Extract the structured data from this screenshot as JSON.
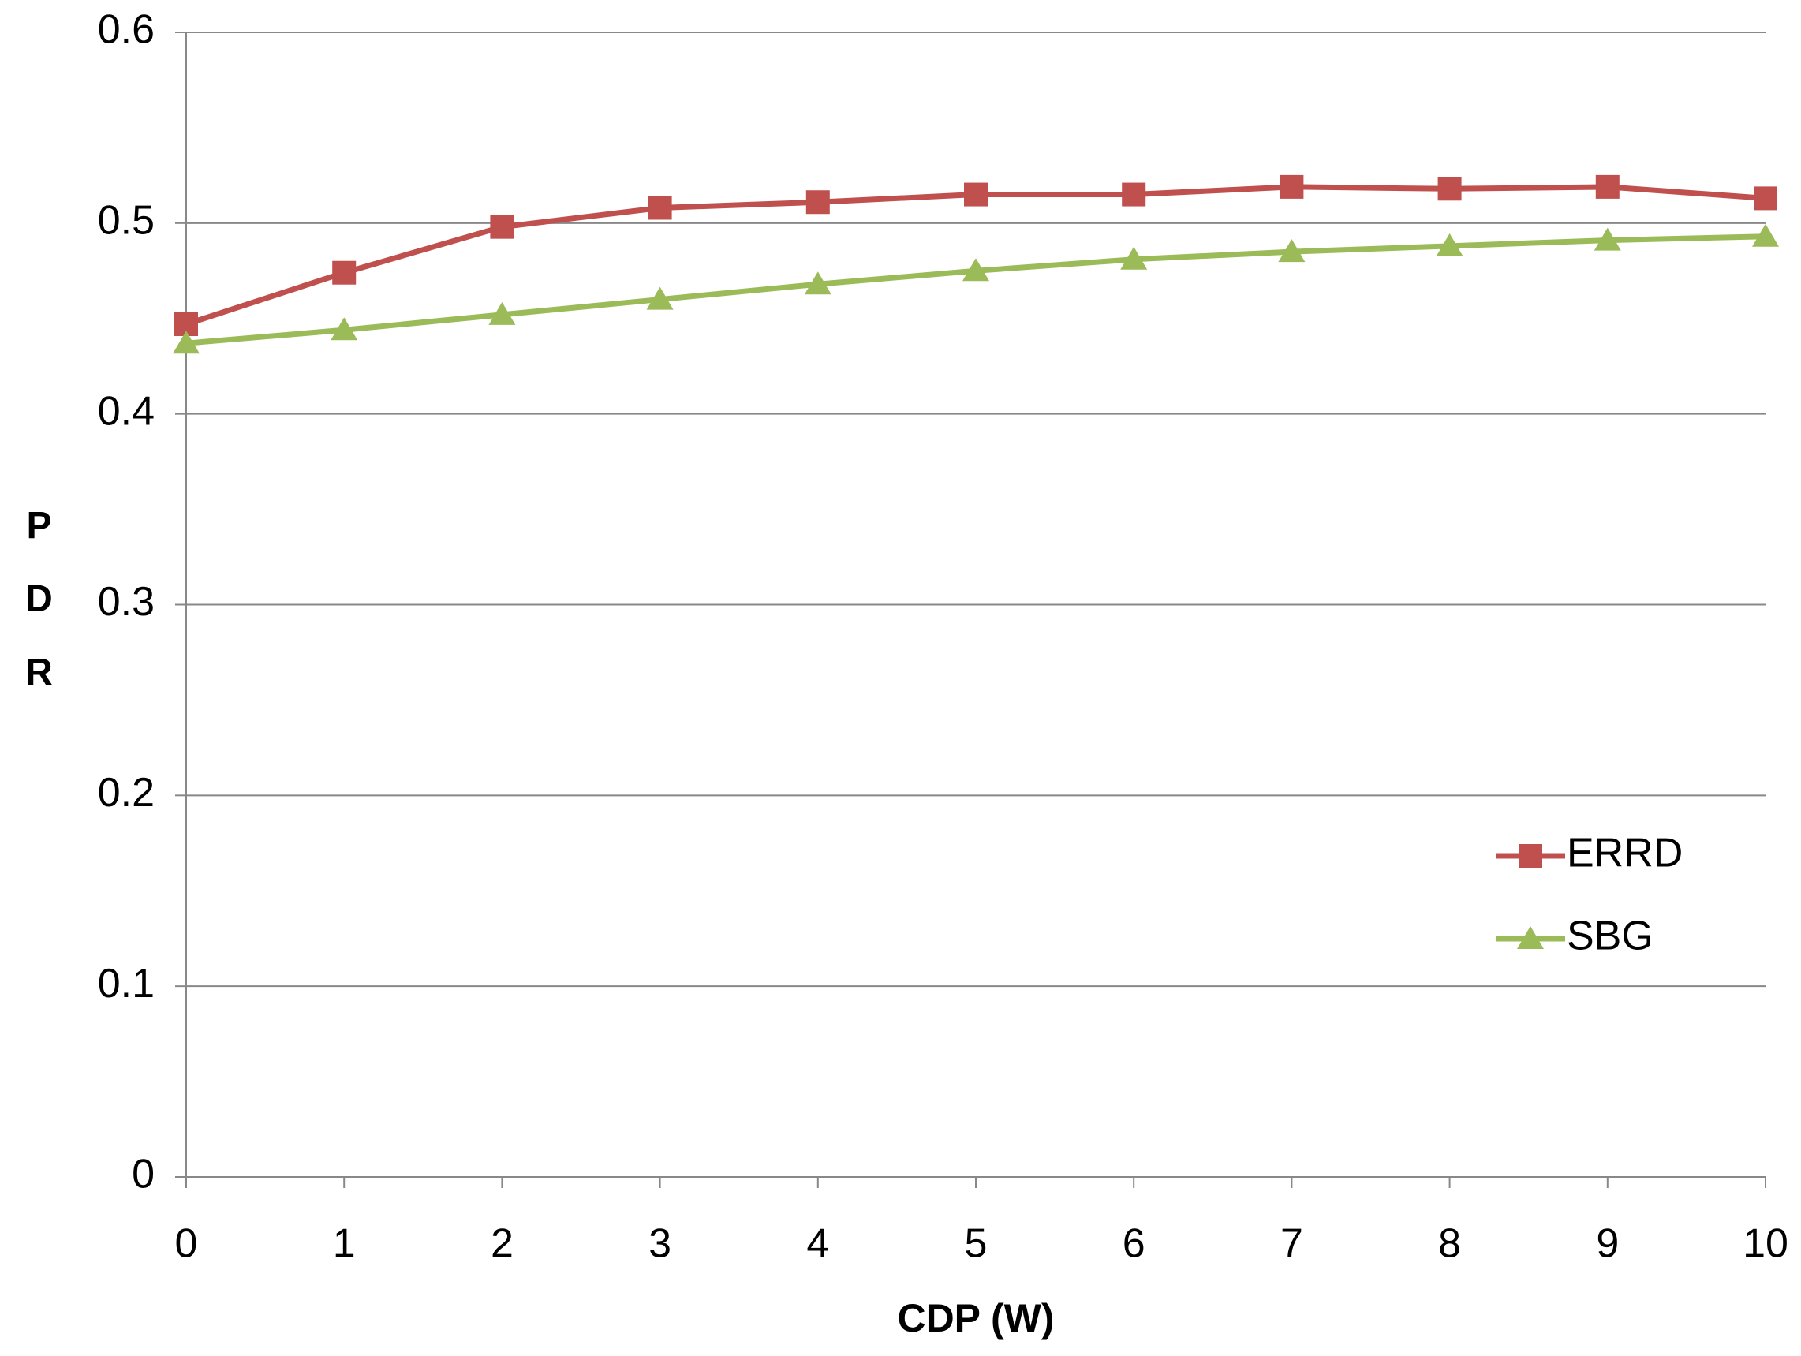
{
  "chart_data": {
    "type": "line",
    "x_label": "CDP (W)",
    "y_label": "PDR",
    "x": [
      0,
      1,
      2,
      3,
      4,
      5,
      6,
      7,
      8,
      9,
      10
    ],
    "series": [
      {
        "name": "ERRD",
        "color": "#c0504d",
        "marker": "square",
        "values": [
          0.447,
          0.474,
          0.498,
          0.508,
          0.511,
          0.515,
          0.515,
          0.519,
          0.518,
          0.519,
          0.513
        ]
      },
      {
        "name": "SBG",
        "color": "#9bbb59",
        "marker": "triangle",
        "values": [
          0.437,
          0.444,
          0.452,
          0.46,
          0.468,
          0.475,
          0.481,
          0.485,
          0.488,
          0.491,
          0.493
        ]
      }
    ],
    "xlim": [
      0,
      10
    ],
    "xticks": [
      0,
      1,
      2,
      3,
      4,
      5,
      6,
      7,
      8,
      9,
      10
    ],
    "ylim": [
      0,
      0.6
    ],
    "yticks": [
      0,
      0.1,
      0.2,
      0.3,
      0.4,
      0.5,
      0.6
    ],
    "grid": true,
    "legend": "right"
  }
}
